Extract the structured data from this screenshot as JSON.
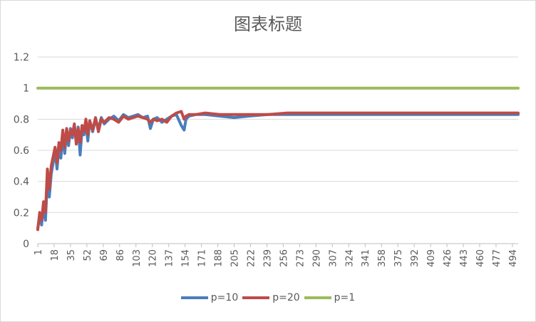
{
  "chart_data": {
    "type": "line",
    "title": "图表标题",
    "xlabel": "",
    "ylabel": "",
    "ylim": [
      0,
      1.2
    ],
    "xlim": [
      1,
      500
    ],
    "yticks": [
      "0",
      "0.2",
      "0.4",
      "0.6",
      "0.8",
      "1",
      "1.2"
    ],
    "xticks": [
      "1",
      "18",
      "35",
      "52",
      "69",
      "86",
      "103",
      "120",
      "137",
      "154",
      "171",
      "188",
      "205",
      "222",
      "239",
      "256",
      "273",
      "290",
      "307",
      "324",
      "341",
      "358",
      "375",
      "392",
      "409",
      "426",
      "443",
      "460",
      "477",
      "494"
    ],
    "grid": true,
    "legend": "bottom",
    "series": [
      {
        "name": "p=10",
        "color": "#4a7ebb",
        "x": [
          1,
          3,
          5,
          7,
          9,
          11,
          13,
          15,
          17,
          19,
          21,
          23,
          25,
          27,
          29,
          31,
          33,
          35,
          37,
          39,
          41,
          43,
          45,
          47,
          49,
          51,
          53,
          55,
          58,
          61,
          64,
          67,
          70,
          75,
          80,
          85,
          90,
          95,
          100,
          105,
          110,
          115,
          118,
          121,
          125,
          130,
          135,
          140,
          145,
          150,
          153,
          155,
          158,
          165,
          175,
          190,
          205,
          220,
          240,
          260,
          300,
          350,
          400,
          450,
          500
        ],
        "values": [
          0.1,
          0.18,
          0.12,
          0.25,
          0.15,
          0.42,
          0.3,
          0.45,
          0.52,
          0.6,
          0.48,
          0.62,
          0.55,
          0.7,
          0.58,
          0.72,
          0.63,
          0.74,
          0.68,
          0.76,
          0.66,
          0.75,
          0.57,
          0.73,
          0.7,
          0.78,
          0.66,
          0.79,
          0.72,
          0.8,
          0.74,
          0.81,
          0.77,
          0.8,
          0.82,
          0.79,
          0.83,
          0.81,
          0.82,
          0.83,
          0.81,
          0.82,
          0.74,
          0.8,
          0.81,
          0.78,
          0.8,
          0.82,
          0.83,
          0.76,
          0.73,
          0.8,
          0.82,
          0.83,
          0.83,
          0.82,
          0.81,
          0.82,
          0.83,
          0.83,
          0.83,
          0.83,
          0.83,
          0.83,
          0.83
        ]
      },
      {
        "name": "p=20",
        "color": "#be4b48",
        "x": [
          1,
          3,
          5,
          7,
          9,
          11,
          13,
          15,
          17,
          19,
          21,
          23,
          25,
          27,
          29,
          31,
          33,
          35,
          37,
          39,
          41,
          43,
          45,
          47,
          49,
          51,
          53,
          55,
          58,
          61,
          64,
          67,
          70,
          75,
          80,
          85,
          90,
          95,
          100,
          105,
          110,
          115,
          118,
          121,
          125,
          130,
          135,
          140,
          145,
          150,
          153,
          155,
          158,
          165,
          175,
          190,
          205,
          220,
          240,
          260,
          300,
          350,
          400,
          450,
          500
        ],
        "values": [
          0.09,
          0.2,
          0.15,
          0.27,
          0.2,
          0.48,
          0.35,
          0.5,
          0.56,
          0.62,
          0.52,
          0.65,
          0.6,
          0.73,
          0.62,
          0.74,
          0.66,
          0.73,
          0.7,
          0.77,
          0.64,
          0.74,
          0.65,
          0.76,
          0.72,
          0.8,
          0.7,
          0.79,
          0.73,
          0.81,
          0.72,
          0.8,
          0.78,
          0.81,
          0.8,
          0.78,
          0.82,
          0.8,
          0.81,
          0.82,
          0.81,
          0.8,
          0.78,
          0.8,
          0.79,
          0.8,
          0.78,
          0.82,
          0.84,
          0.85,
          0.8,
          0.82,
          0.83,
          0.83,
          0.84,
          0.83,
          0.83,
          0.83,
          0.83,
          0.84,
          0.84,
          0.84,
          0.84,
          0.84,
          0.84
        ]
      },
      {
        "name": "p=1",
        "color": "#9bbb59",
        "x": [
          1,
          500
        ],
        "values": [
          1.0,
          1.0
        ]
      }
    ]
  }
}
